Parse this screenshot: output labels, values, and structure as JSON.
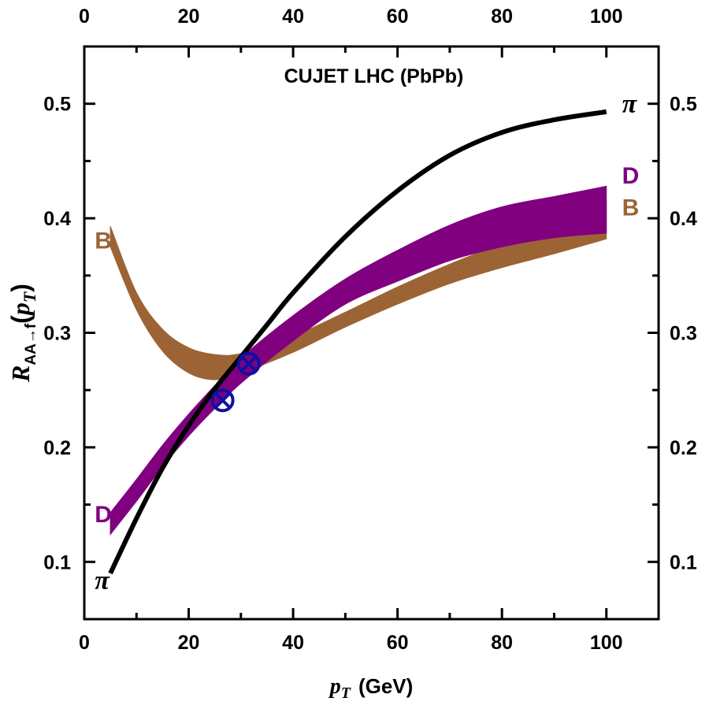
{
  "chart_data": {
    "type": "line",
    "title": "CUJET LHC (PbPb)",
    "xlabel": {
      "main": "p",
      "sub": "T",
      "unit": "(GeV)"
    },
    "ylabel": {
      "main": "R",
      "sub": "AA→f",
      "paren_open": "(",
      "arg": "p",
      "arg_sub": "T",
      "paren_close": ")"
    },
    "xlim": [
      0,
      110
    ],
    "ylim": [
      0.05,
      0.55
    ],
    "xticks": [
      0,
      20,
      40,
      60,
      80,
      100
    ],
    "yticks": [
      0.1,
      0.2,
      0.3,
      0.4,
      0.5
    ],
    "xtick_labels": [
      "0",
      "20",
      "40",
      "60",
      "80",
      "100"
    ],
    "ytick_labels": [
      "0.1",
      "0.2",
      "0.3",
      "0.4",
      "0.5"
    ],
    "grid": false,
    "series": [
      {
        "name": "B",
        "kind": "band",
        "color": "#9C6434",
        "x": [
          5,
          10,
          15,
          20,
          25,
          30,
          40,
          50,
          60,
          70,
          80,
          90,
          100
        ],
        "upper": [
          0.393,
          0.335,
          0.303,
          0.287,
          0.281,
          0.282,
          0.297,
          0.318,
          0.34,
          0.36,
          0.378,
          0.396,
          0.415
        ],
        "lower": [
          0.375,
          0.32,
          0.284,
          0.265,
          0.259,
          0.265,
          0.283,
          0.305,
          0.325,
          0.343,
          0.357,
          0.369,
          0.382
        ]
      },
      {
        "name": "D",
        "kind": "band",
        "color": "#800080",
        "x": [
          5,
          10,
          15,
          20,
          25,
          30,
          40,
          50,
          60,
          70,
          80,
          90,
          100
        ],
        "upper": [
          0.143,
          0.172,
          0.202,
          0.229,
          0.254,
          0.278,
          0.315,
          0.347,
          0.372,
          0.394,
          0.41,
          0.419,
          0.428
        ],
        "lower": [
          0.124,
          0.153,
          0.183,
          0.21,
          0.234,
          0.256,
          0.293,
          0.325,
          0.345,
          0.363,
          0.375,
          0.383,
          0.387
        ]
      },
      {
        "name": "π",
        "kind": "line",
        "color": "#000000",
        "x": [
          5,
          10,
          15,
          20,
          25,
          30,
          35,
          40,
          50,
          60,
          70,
          80,
          90,
          100
        ],
        "y": [
          0.09,
          0.138,
          0.182,
          0.219,
          0.251,
          0.279,
          0.307,
          0.335,
          0.384,
          0.424,
          0.455,
          0.475,
          0.486,
          0.493
        ]
      }
    ],
    "markers": [
      {
        "x": 26.5,
        "y": 0.241,
        "symbol": "⊗",
        "color": "#1010A0"
      },
      {
        "x": 31.5,
        "y": 0.273,
        "symbol": "⊗",
        "color": "#1010A0"
      }
    ],
    "annotations": [
      {
        "text": "B",
        "x": 2,
        "y": 0.381,
        "color": "#9C6434"
      },
      {
        "text": "D",
        "x": 2,
        "y": 0.142,
        "color": "#800080"
      },
      {
        "text": "π",
        "x": 2,
        "y": 0.084,
        "color": "#000000"
      },
      {
        "text": "π",
        "x": 103,
        "y": 0.5,
        "color": "#000000"
      },
      {
        "text": "D",
        "x": 103,
        "y": 0.438,
        "color": "#800080"
      },
      {
        "text": "B",
        "x": 103,
        "y": 0.41,
        "color": "#9C6434"
      }
    ]
  }
}
